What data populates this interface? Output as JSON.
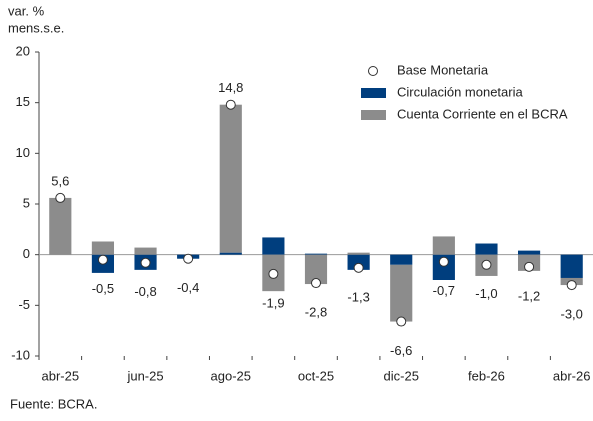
{
  "chart_data": {
    "type": "bar",
    "stacked": true,
    "y_label": [
      "var. %",
      "mens.s.e."
    ],
    "categories": [
      "abr-25",
      null,
      "jun-25",
      null,
      "ago-25",
      null,
      "oct-25",
      null,
      "dic-25",
      null,
      "feb-26",
      null,
      "abr-26"
    ],
    "series": [
      {
        "name": "Base Monetaria",
        "type": "scatter",
        "color": "#ffffff",
        "values": [
          5.6,
          -0.5,
          -0.8,
          -0.4,
          14.8,
          -1.9,
          -2.8,
          -1.3,
          -6.6,
          -0.7,
          -1.0,
          -1.2,
          -3.0
        ],
        "value_labels": [
          "5,6",
          "-0,5",
          "-0,8",
          "-0,4",
          "14,8",
          "-1,9",
          "-2,8",
          "-1,3",
          "-6,6",
          "-0,7",
          "-1,0",
          "-1,2",
          "-3,0"
        ]
      },
      {
        "name": "Circulación monetaria",
        "type": "bar",
        "color": "#003e7e",
        "values": [
          0,
          -1.8,
          -1.5,
          -0.4,
          0.2,
          1.7,
          0.1,
          -1.5,
          -1.0,
          -2.5,
          1.1,
          0.4,
          -2.3
        ]
      },
      {
        "name": "Cuenta Corriente en el BCRA",
        "type": "bar",
        "color": "#8c8c8c",
        "values": [
          5.6,
          1.3,
          0.7,
          0,
          14.6,
          -3.6,
          -2.9,
          0.2,
          -5.6,
          1.8,
          -2.1,
          -1.6,
          -0.7
        ]
      }
    ],
    "ylim": [
      -10,
      20
    ],
    "yticks": [
      20,
      15,
      10,
      5,
      0,
      -5,
      -10
    ],
    "grid": false,
    "source": "Fuente: BCRA."
  }
}
